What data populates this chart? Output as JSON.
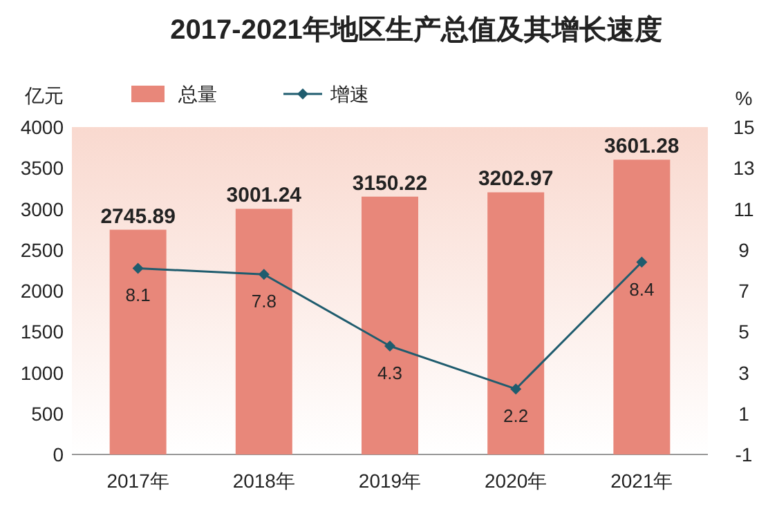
{
  "chart_data": {
    "type": "bar",
    "title": "2017-2021年地区生产总值及其增长速度",
    "ylabel": "亿元",
    "y2label": "%",
    "categories": [
      "2017年",
      "2018年",
      "2019年",
      "2020年",
      "2021年"
    ],
    "series": [
      {
        "name": "总量",
        "color": "#e8877a",
        "values": [
          2745.89,
          3001.24,
          3150.22,
          3202.97,
          3601.28
        ]
      },
      {
        "name": "增速",
        "type": "line",
        "axis": "y2",
        "color": "#1f5c6e",
        "values": [
          8.1,
          7.8,
          4.3,
          2.2,
          8.4
        ]
      }
    ],
    "ylim": [
      0,
      4000
    ],
    "yticks": [
      0,
      500,
      1000,
      1500,
      2000,
      2500,
      3000,
      3500,
      4000
    ],
    "y2lim": [
      -1,
      15
    ],
    "y2ticks": [
      -1,
      1,
      3,
      5,
      7,
      9,
      11,
      13,
      15
    ],
    "data_labels": true,
    "legend": "top",
    "grid": false,
    "marker": "diamond",
    "line_style": "solid"
  }
}
